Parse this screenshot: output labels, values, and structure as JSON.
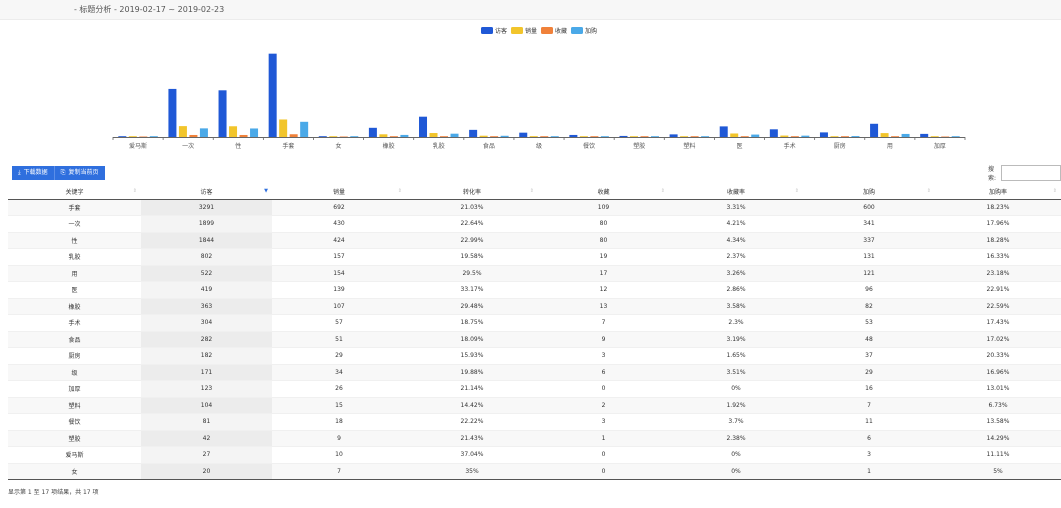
{
  "header": {
    "title": "- 标题分析 - 2019-02-17 ~ 2019-02-23"
  },
  "colors": {
    "访客": "#1f58d6",
    "销量": "#f2c52b",
    "收藏": "#f0813a",
    "加购": "#4aa9e8"
  },
  "chart_data": {
    "type": "bar",
    "categories": [
      "爱马斯",
      "一次",
      "性",
      "手套",
      "女",
      "橡胶",
      "乳胶",
      "食品",
      "级",
      "餐饮",
      "塑胶",
      "塑料",
      "医",
      "手术",
      "厨房",
      "用",
      "加厚"
    ],
    "series": [
      {
        "name": "访客",
        "values": [
          27,
          1899,
          1844,
          3291,
          20,
          363,
          802,
          282,
          171,
          81,
          42,
          104,
          419,
          304,
          182,
          522,
          123
        ]
      },
      {
        "name": "销量",
        "values": [
          10,
          430,
          424,
          692,
          7,
          107,
          157,
          51,
          34,
          18,
          9,
          15,
          139,
          57,
          29,
          154,
          26
        ]
      },
      {
        "name": "收藏",
        "values": [
          0,
          80,
          80,
          109,
          0,
          13,
          19,
          9,
          6,
          3,
          1,
          2,
          12,
          7,
          3,
          17,
          0
        ]
      },
      {
        "name": "加购",
        "values": [
          3,
          341,
          337,
          600,
          1,
          82,
          131,
          48,
          29,
          11,
          6,
          7,
          96,
          53,
          37,
          121,
          16
        ]
      }
    ],
    "legend": [
      "访客",
      "销量",
      "收藏",
      "加购"
    ],
    "legend_position": "top-center",
    "grid": false
  },
  "toolbar": {
    "download_label": "下载数据",
    "copy_label": "复制当前页",
    "search_label": "搜索:"
  },
  "table": {
    "columns": [
      "关键字",
      "访客",
      "销量",
      "转化率",
      "收藏",
      "收藏率",
      "加购",
      "加购率"
    ],
    "rows": [
      [
        "手套",
        "3291",
        "692",
        "21.03%",
        "109",
        "3.31%",
        "600",
        "18.23%"
      ],
      [
        "一次",
        "1899",
        "430",
        "22.64%",
        "80",
        "4.21%",
        "341",
        "17.96%"
      ],
      [
        "性",
        "1844",
        "424",
        "22.99%",
        "80",
        "4.34%",
        "337",
        "18.28%"
      ],
      [
        "乳胶",
        "802",
        "157",
        "19.58%",
        "19",
        "2.37%",
        "131",
        "16.33%"
      ],
      [
        "用",
        "522",
        "154",
        "29.5%",
        "17",
        "3.26%",
        "121",
        "23.18%"
      ],
      [
        "医",
        "419",
        "139",
        "33.17%",
        "12",
        "2.86%",
        "96",
        "22.91%"
      ],
      [
        "橡胶",
        "363",
        "107",
        "29.48%",
        "13",
        "3.58%",
        "82",
        "22.59%"
      ],
      [
        "手术",
        "304",
        "57",
        "18.75%",
        "7",
        "2.3%",
        "53",
        "17.43%"
      ],
      [
        "食品",
        "282",
        "51",
        "18.09%",
        "9",
        "3.19%",
        "48",
        "17.02%"
      ],
      [
        "厨房",
        "182",
        "29",
        "15.93%",
        "3",
        "1.65%",
        "37",
        "20.33%"
      ],
      [
        "级",
        "171",
        "34",
        "19.88%",
        "6",
        "3.51%",
        "29",
        "16.96%"
      ],
      [
        "加厚",
        "123",
        "26",
        "21.14%",
        "0",
        "0%",
        "16",
        "13.01%"
      ],
      [
        "塑料",
        "104",
        "15",
        "14.42%",
        "2",
        "1.92%",
        "7",
        "6.73%"
      ],
      [
        "餐饮",
        "81",
        "18",
        "22.22%",
        "3",
        "3.7%",
        "11",
        "13.58%"
      ],
      [
        "塑胶",
        "42",
        "9",
        "21.43%",
        "1",
        "2.38%",
        "6",
        "14.29%"
      ],
      [
        "爱马斯",
        "27",
        "10",
        "37.04%",
        "0",
        "0%",
        "3",
        "11.11%"
      ],
      [
        "女",
        "20",
        "7",
        "35%",
        "0",
        "0%",
        "1",
        "5%"
      ]
    ]
  },
  "footer": {
    "info": "显示第 1 至 17 项结果，共 17 项"
  }
}
